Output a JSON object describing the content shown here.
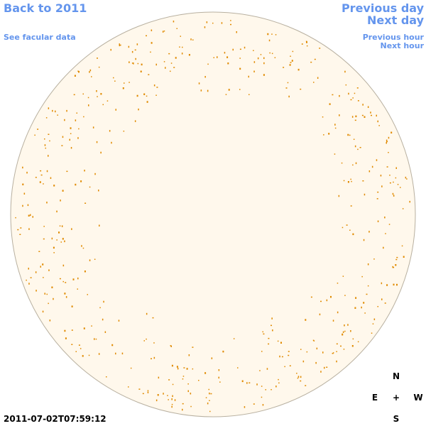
{
  "navigation": {
    "back_year": "Back to 2011",
    "facular_data": "See facular data",
    "previous_day": "Previous day",
    "next_day": "Next day",
    "previous_hour": "Previous hour",
    "next_hour": "Next hour"
  },
  "compass": {
    "north": "N",
    "east": "E",
    "center": "+",
    "west": "W",
    "south": "S"
  },
  "timestamp": "2011-07-02T07:59:12"
}
